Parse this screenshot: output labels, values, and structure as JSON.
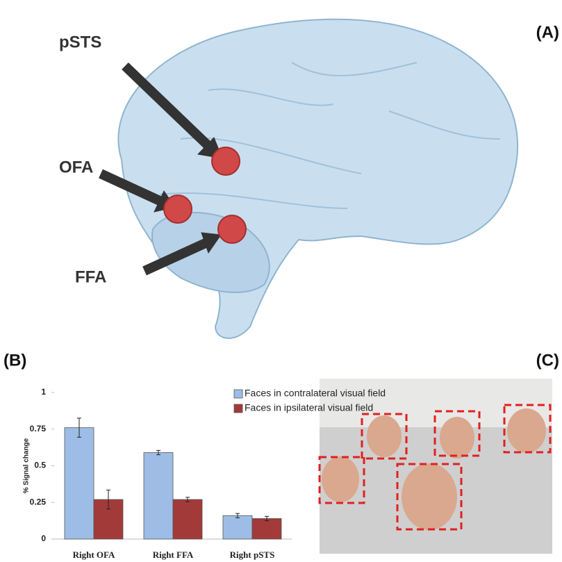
{
  "panel_labels": [
    "(A)",
    "(B)",
    "(C)"
  ],
  "brain_labels": [
    "pSTS",
    "OFA",
    "FFA"
  ],
  "chart_data": {
    "type": "bar",
    "categories": [
      "Right OFA",
      "Right FFA",
      "Right pSTS"
    ],
    "series": [
      {
        "name": "Faces in contralateral visual field",
        "color": "#9dbde6",
        "values": [
          0.76,
          0.59,
          0.16
        ],
        "errors": [
          0.065,
          0.015,
          0.015
        ]
      },
      {
        "name": "Faces in ipsilateral visual field",
        "color": "#a33a3a",
        "values": [
          0.27,
          0.27,
          0.14
        ],
        "errors": [
          0.065,
          0.015,
          0.015
        ]
      }
    ],
    "y_label": "% Signal change",
    "ylim": [
      0,
      1
    ],
    "yticks": [
      0,
      0.25,
      0.5,
      0.75,
      1
    ]
  }
}
